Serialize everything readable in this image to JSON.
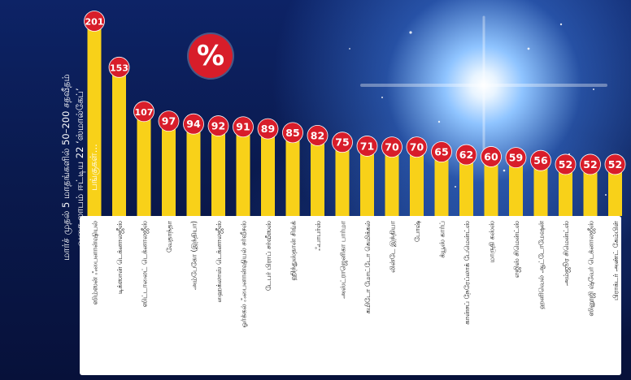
{
  "caption": "மார்ச் முதல் 5 மாதங்களில் 50–200 சதவீதம் வரை லாபம் ஈட்டிய 22 ‘ஸ்மால்கேப்’ பங்குகள்...",
  "badge_symbol": "%",
  "colors": {
    "bar": "#f8d119",
    "badge": "#d81d2a",
    "label_panel": "#ffffff",
    "value_text": "#ffffff"
  },
  "chart_data": {
    "type": "bar",
    "categories": [
      "ஸிம்ஸன் ஃபைனான்ஷியல்",
      "டிக்ஸான் டெக்னாலஜீஸ்",
      "ஸிட்டாலைட் டெக்னாலஜீஸ்",
      "வேதாந்தா",
      "அம்பேகோ (இந்தியா)",
      "ஹைக்லாஸ் டெக்னாலஜீஸ்",
      "ஓர்க்கல் ஃபைனான்ஷியல் சர்வீசஸ்",
      "டேபர் பிராப் சர்வீஸஸ்",
      "ஹிந்துஸ்தான் சிங்க்",
      "ஃபாபர்ஸ்",
      "அஸ்ட்ராஜெனிகா பார்மா",
      "கமிடோ மோட்டோ கெமிக்கல்",
      "லின்டே இந்தியா",
      "போஷ்",
      "க்யூஸ் கார்ப்",
      "கான்சப் நேரேப்லாக் பேமென்ட்ஸ்",
      "மாருதி கஸ்ஸ்",
      "எஜிஸ் சிமென்ட்ஸ்",
      "ஹனிவெல் ஆட்டோமேஷன்",
      "அம்ஜூர சிமென்ட்ஸ்",
      "ஸினூஜி ஷ்வேர் டெக்னாலஜீஸ்",
      "பிராக்டர் அண்ட் கேம்பிள்"
    ],
    "values": [
      201,
      153,
      107,
      97,
      94,
      92,
      91,
      89,
      85,
      82,
      75,
      71,
      70,
      70,
      65,
      62,
      60,
      59,
      56,
      52,
      52,
      52
    ],
    "ylim": [
      0,
      201
    ]
  }
}
